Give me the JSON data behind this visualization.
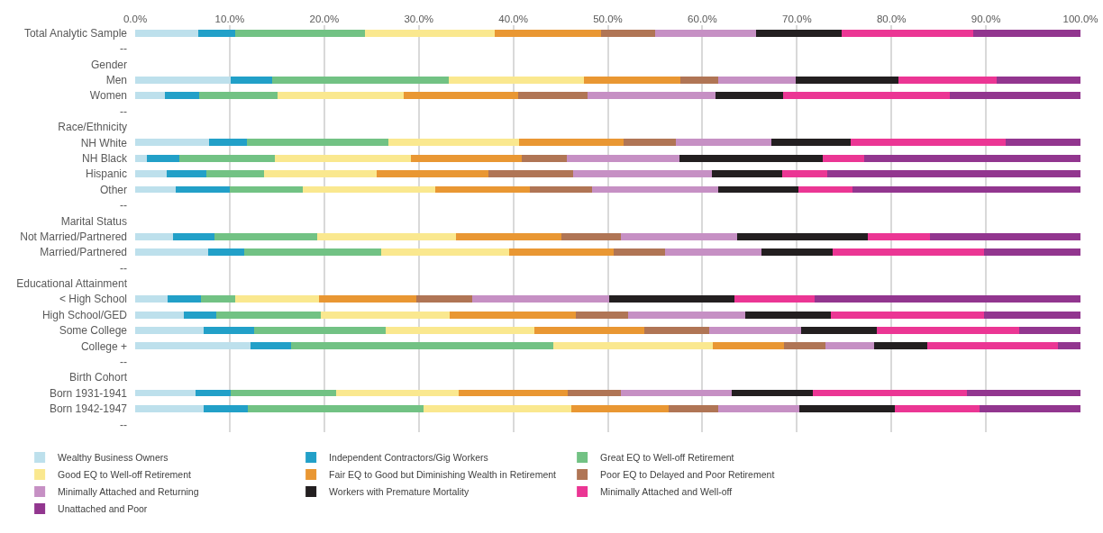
{
  "chart_data": {
    "type": "bar",
    "orientation": "horizontal",
    "stacked": true,
    "categories": [
      "Total Analytic Sample",
      "--",
      "Gender",
      "Men",
      "Women",
      "--",
      "Race/Ethnicity",
      "NH White",
      "NH Black",
      "Hispanic",
      "Other",
      "--",
      "Marital Status",
      "Not Married/Partnered",
      "Married/Partnered",
      "--",
      "Educational Attainment",
      "< High School",
      "High School/GED",
      "Some College",
      "College +",
      "--",
      "Birth Cohort",
      "Born 1931-1941",
      "Born 1942-1947",
      "--"
    ],
    "series": [
      {
        "name": "Wealthy Business Owners",
        "color": "#bde0ec",
        "values": [
          6.7,
          null,
          null,
          10.1,
          3.1,
          null,
          null,
          7.8,
          1.2,
          3.3,
          4.3,
          null,
          null,
          4.0,
          7.7,
          null,
          null,
          3.4,
          5.1,
          7.2,
          12.2,
          null,
          null,
          6.4,
          7.2,
          null
        ]
      },
      {
        "name": "Independent Contractors/Gig Workers",
        "color": "#22a0c8",
        "values": [
          3.9,
          null,
          null,
          4.4,
          3.7,
          null,
          null,
          4.0,
          3.5,
          4.2,
          5.7,
          null,
          null,
          4.4,
          3.8,
          null,
          null,
          3.6,
          3.5,
          5.4,
          4.3,
          null,
          null,
          3.7,
          4.7,
          null
        ]
      },
      {
        "name": "Great EQ to Well-off Retirement",
        "color": "#72c284",
        "values": [
          13.7,
          null,
          null,
          18.7,
          8.3,
          null,
          null,
          15.0,
          10.1,
          6.1,
          7.7,
          null,
          null,
          10.9,
          14.5,
          null,
          null,
          3.6,
          11.0,
          13.9,
          27.7,
          null,
          null,
          11.2,
          18.6,
          null
        ]
      },
      {
        "name": "Good EQ to Well-off Retirement",
        "color": "#fae88f",
        "values": [
          13.7,
          null,
          null,
          14.3,
          13.3,
          null,
          null,
          13.8,
          14.4,
          11.9,
          14.0,
          null,
          null,
          14.6,
          13.6,
          null,
          null,
          8.8,
          13.7,
          15.7,
          16.9,
          null,
          null,
          12.9,
          15.6,
          null
        ]
      },
      {
        "name": "Fair EQ to Good but Diminishing Wealth in Retirement",
        "color": "#e99733",
        "values": [
          11.3,
          null,
          null,
          10.2,
          12.1,
          null,
          null,
          11.1,
          11.7,
          11.9,
          10.1,
          null,
          null,
          11.2,
          11.0,
          null,
          null,
          10.3,
          13.3,
          11.7,
          7.5,
          null,
          null,
          11.6,
          10.3,
          null
        ]
      },
      {
        "name": "Poor EQ to Delayed and Poor Retirement",
        "color": "#b07555",
        "values": [
          5.7,
          null,
          null,
          4.0,
          7.4,
          null,
          null,
          5.5,
          4.8,
          8.9,
          6.5,
          null,
          null,
          6.3,
          5.5,
          null,
          null,
          6.0,
          5.5,
          6.8,
          4.4,
          null,
          null,
          5.6,
          5.3,
          null
        ]
      },
      {
        "name": "Minimally Attached and Returning",
        "color": "#c690c4",
        "values": [
          10.7,
          null,
          null,
          8.2,
          13.5,
          null,
          null,
          10.1,
          11.9,
          14.7,
          13.4,
          null,
          null,
          12.3,
          10.2,
          null,
          null,
          14.4,
          12.4,
          9.7,
          5.2,
          null,
          null,
          11.7,
          8.6,
          null
        ]
      },
      {
        "name": "Workers with Premature Mortality",
        "color": "#231f20",
        "values": [
          9.0,
          null,
          null,
          10.8,
          7.1,
          null,
          null,
          8.4,
          15.1,
          7.4,
          8.5,
          null,
          null,
          13.8,
          7.5,
          null,
          null,
          13.3,
          9.1,
          8.1,
          5.6,
          null,
          null,
          8.6,
          10.1,
          null
        ]
      },
      {
        "name": "Minimally Attached and Well-off",
        "color": "#eb3694",
        "values": [
          14.0,
          null,
          null,
          10.4,
          17.7,
          null,
          null,
          16.4,
          4.4,
          4.8,
          5.7,
          null,
          null,
          6.6,
          16.0,
          null,
          null,
          8.5,
          16.2,
          15.0,
          13.8,
          null,
          null,
          16.3,
          8.9,
          null
        ]
      },
      {
        "name": "Unattached and Poor",
        "color": "#92368f",
        "values": [
          11.3,
          null,
          null,
          8.9,
          13.8,
          null,
          null,
          7.9,
          22.9,
          26.8,
          24.1,
          null,
          null,
          15.9,
          10.2,
          null,
          null,
          28.1,
          10.2,
          6.5,
          2.4,
          null,
          null,
          12.0,
          10.7,
          null
        ]
      }
    ],
    "xlim": [
      0,
      100
    ],
    "xticks": [
      {
        "value": 0,
        "label": "0.0%"
      },
      {
        "value": 10,
        "label": "10.0%"
      },
      {
        "value": 20,
        "label": "20.0%"
      },
      {
        "value": 30,
        "label": "30.0%"
      },
      {
        "value": 40,
        "label": "40.0%"
      },
      {
        "value": 50,
        "label": "50.0%"
      },
      {
        "value": 60,
        "label": "60.0%"
      },
      {
        "value": 70,
        "label": "70.0%"
      },
      {
        "value": 80,
        "label": "80.0%"
      },
      {
        "value": 90,
        "label": "90.0%"
      },
      {
        "value": 100,
        "label": "100.0%"
      }
    ],
    "grid": "x",
    "legend": "bottom"
  }
}
